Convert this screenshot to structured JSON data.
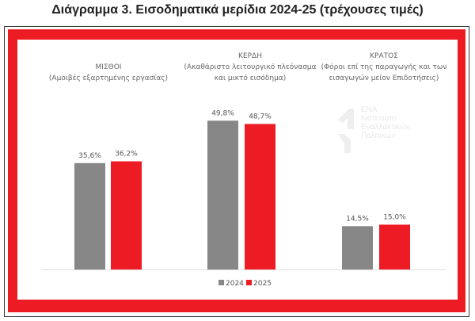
{
  "chart_data": {
    "type": "bar",
    "title": "Διάγραμμα 3. Εισοδηματικά μερίδια 2024-25 (τρέχουσες τιμές)",
    "categories": [
      {
        "name": "ΜΙΣΘΟΙ",
        "desc": "(Αμοιβές εξαρτημένης εργασίας)"
      },
      {
        "name": "ΚΕΡΔΗ",
        "desc": "(Ακαθάριστο λειτουργικό πλεόνασμα",
        "desc2": "και μικτό εισόδημα)"
      },
      {
        "name": "ΚΡΑΤΟΣ",
        "desc": "(Φόροι επί της παραγωγής και των",
        "desc2": "εισαγωγών μείον Επιδοτήσεις)"
      }
    ],
    "series": [
      {
        "name": "2024",
        "color": "#878787",
        "values": [
          35.6,
          49.8,
          14.5
        ],
        "labels": [
          "35,6%",
          "49,8%",
          "14,5%"
        ]
      },
      {
        "name": "2025",
        "color": "#ed1c24",
        "values": [
          36.2,
          48.7,
          15.0
        ],
        "labels": [
          "36,2%",
          "48,7%",
          "15,0%"
        ]
      }
    ],
    "ylim": [
      0,
      60
    ],
    "grid": false,
    "legend": "bottom"
  },
  "watermark": [
    "ΕΝΑ",
    "Ινστιτούτο",
    "Εναλλακτικών",
    "Πολιτικών"
  ]
}
